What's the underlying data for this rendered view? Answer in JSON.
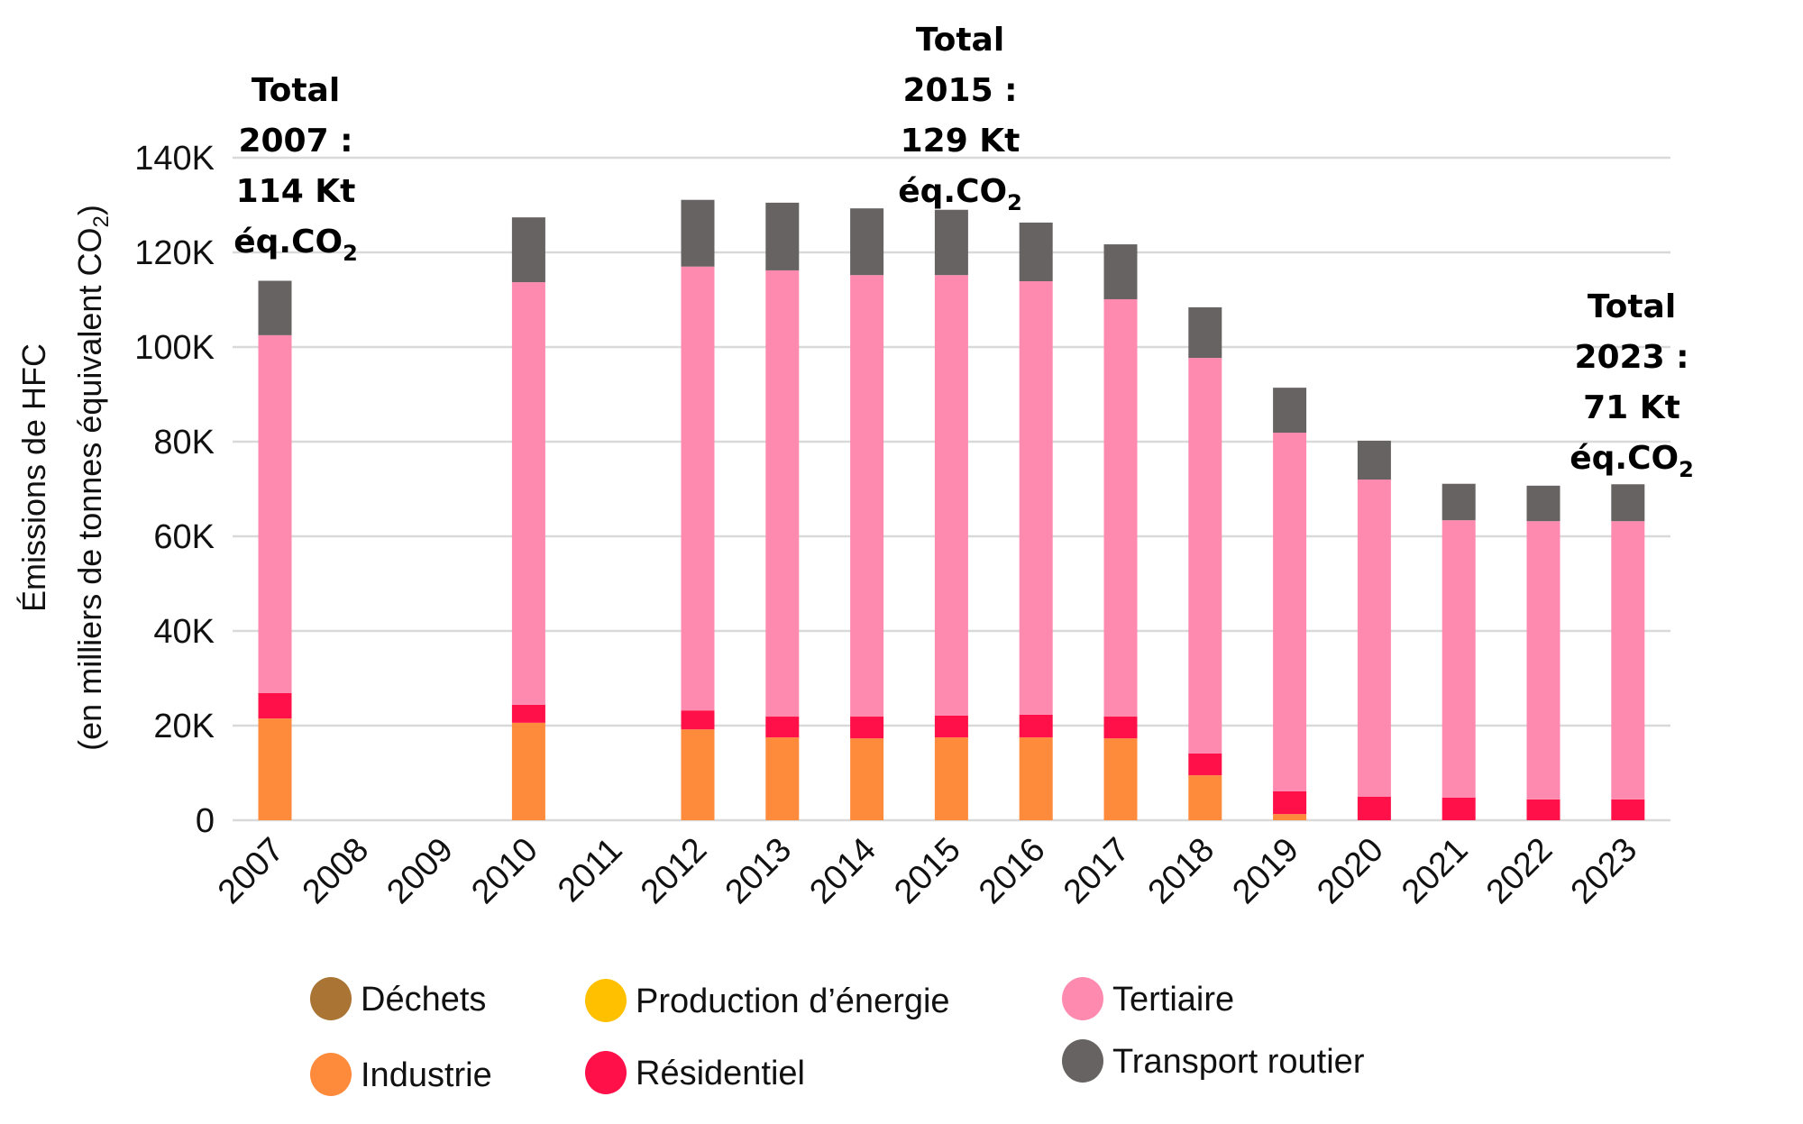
{
  "chart_data": {
    "type": "bar",
    "stacked": true,
    "title": "",
    "xlabel": "",
    "ylabel_line1": "Émissions de HFC",
    "ylabel_line2_main": "(en milliers de tonnes équivalent CO",
    "ylabel_line2_sub": "2",
    "ylabel_line2_end": ")",
    "ylim": [
      0,
      140000
    ],
    "yticks": [
      0,
      20000,
      40000,
      60000,
      80000,
      100000,
      120000,
      140000
    ],
    "ytick_labels": [
      "0",
      "20K",
      "40K",
      "60K",
      "80K",
      "100K",
      "120K",
      "140K"
    ],
    "grid": true,
    "categories": [
      "2007",
      "2008",
      "2009",
      "2010",
      "2011",
      "2012",
      "2013",
      "2014",
      "2015",
      "2016",
      "2017",
      "2018",
      "2019",
      "2020",
      "2021",
      "2022",
      "2023"
    ],
    "series": [
      {
        "name": "Déchets",
        "color": "#a97434",
        "values": [
          0,
          0,
          0,
          0,
          0,
          0,
          0,
          0,
          0,
          0,
          0,
          0,
          0,
          0,
          0,
          0,
          0
        ]
      },
      {
        "name": "Production d’énergie",
        "color": "#ffc000",
        "values": [
          0,
          0,
          0,
          0,
          0,
          0,
          0,
          0,
          0,
          0,
          0,
          0,
          0,
          0,
          0,
          0,
          0
        ]
      },
      {
        "name": "Industrie",
        "color": "#fe8a3c",
        "values": [
          21500,
          0,
          0,
          20600,
          0,
          19200,
          17500,
          17300,
          17500,
          17500,
          17300,
          9500,
          1300,
          0,
          0,
          0,
          0
        ]
      },
      {
        "name": "Résidentiel",
        "color": "#ff1048",
        "values": [
          5400,
          0,
          0,
          3800,
          0,
          4000,
          4400,
          4600,
          4600,
          4800,
          4600,
          4600,
          4800,
          5000,
          4800,
          4400,
          4400
        ]
      },
      {
        "name": "Tertiaire",
        "color": "#ff8ab0",
        "values": [
          75600,
          0,
          0,
          89300,
          0,
          93800,
          94300,
          93300,
          93100,
          91600,
          88200,
          83600,
          75800,
          67000,
          58600,
          58800,
          58800
        ]
      },
      {
        "name": "Transport routier",
        "color": "#686363",
        "values": [
          11500,
          0,
          0,
          13700,
          0,
          14100,
          14300,
          14100,
          13800,
          12400,
          11600,
          10700,
          9500,
          8200,
          7700,
          7500,
          7800
        ]
      }
    ],
    "legend": {
      "placement": "bottom",
      "items": [
        {
          "label": "Déchets",
          "color": "#a97434"
        },
        {
          "label": "Production d’énergie",
          "color": "#ffc000"
        },
        {
          "label": "Tertiaire",
          "color": "#ff8ab0"
        },
        {
          "label": "Industrie",
          "color": "#fe8a3c"
        },
        {
          "label": "Résidentiel",
          "color": "#ff1048"
        },
        {
          "label": "Transport routier",
          "color": "#686363"
        }
      ]
    },
    "annotations": [
      {
        "category": "2007",
        "lines": [
          "Total",
          "2007 :",
          "114 Kt"
        ],
        "last_main": "éq.CO",
        "last_sub": "2"
      },
      {
        "category": "2015",
        "lines": [
          "Total",
          "2015 :",
          "129 Kt"
        ],
        "last_main": "éq.CO",
        "last_sub": "2"
      },
      {
        "category": "2023",
        "lines": [
          "Total",
          "2023 :",
          "71 Kt"
        ],
        "last_main": "éq.CO",
        "last_sub": "2"
      }
    ]
  }
}
